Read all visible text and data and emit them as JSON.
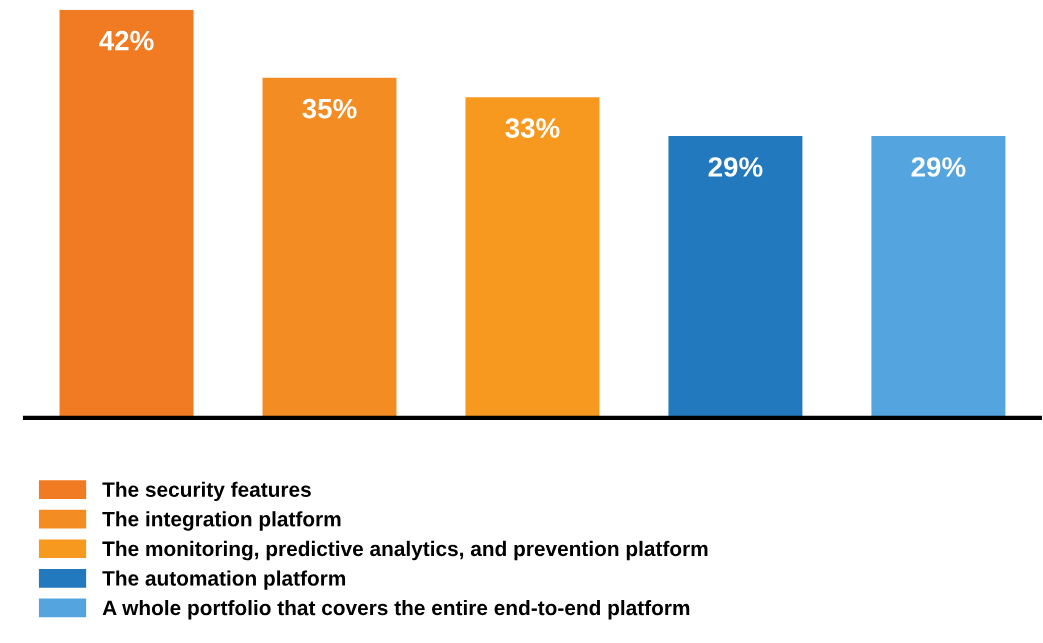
{
  "chart_data": {
    "type": "bar",
    "stacked": true,
    "categories": [
      null,
      null,
      null,
      null,
      null
    ],
    "series": [
      {
        "name": "The security features",
        "color": "#f07b22",
        "values": [
          42,
          null,
          null,
          null,
          null
        ],
        "value_labels": [
          "42%",
          null,
          null,
          null,
          null
        ]
      },
      {
        "name": "The integration platform",
        "color": "#f48c24",
        "values": [
          null,
          35,
          null,
          null,
          null
        ],
        "value_labels": [
          null,
          "35%",
          null,
          null,
          null
        ]
      },
      {
        "name": "The monitoring, predictive analytics, and prevention platform",
        "color": "#f7991f",
        "values": [
          null,
          null,
          33,
          null,
          null
        ],
        "value_labels": [
          null,
          null,
          "33%",
          null,
          null
        ]
      },
      {
        "name": "The automation platform",
        "color": "#2379bd",
        "values": [
          null,
          null,
          null,
          29,
          null
        ],
        "value_labels": [
          null,
          null,
          null,
          "29%",
          null
        ]
      },
      {
        "name": "A whole portfolio that covers the entire end-to-end platform",
        "color": "#54a4e0",
        "values": [
          null,
          null,
          null,
          null,
          29
        ],
        "value_labels": [
          null,
          null,
          null,
          null,
          "29%"
        ]
      }
    ],
    "legend": "bottom",
    "grid": false,
    "tick_labels": false
  }
}
